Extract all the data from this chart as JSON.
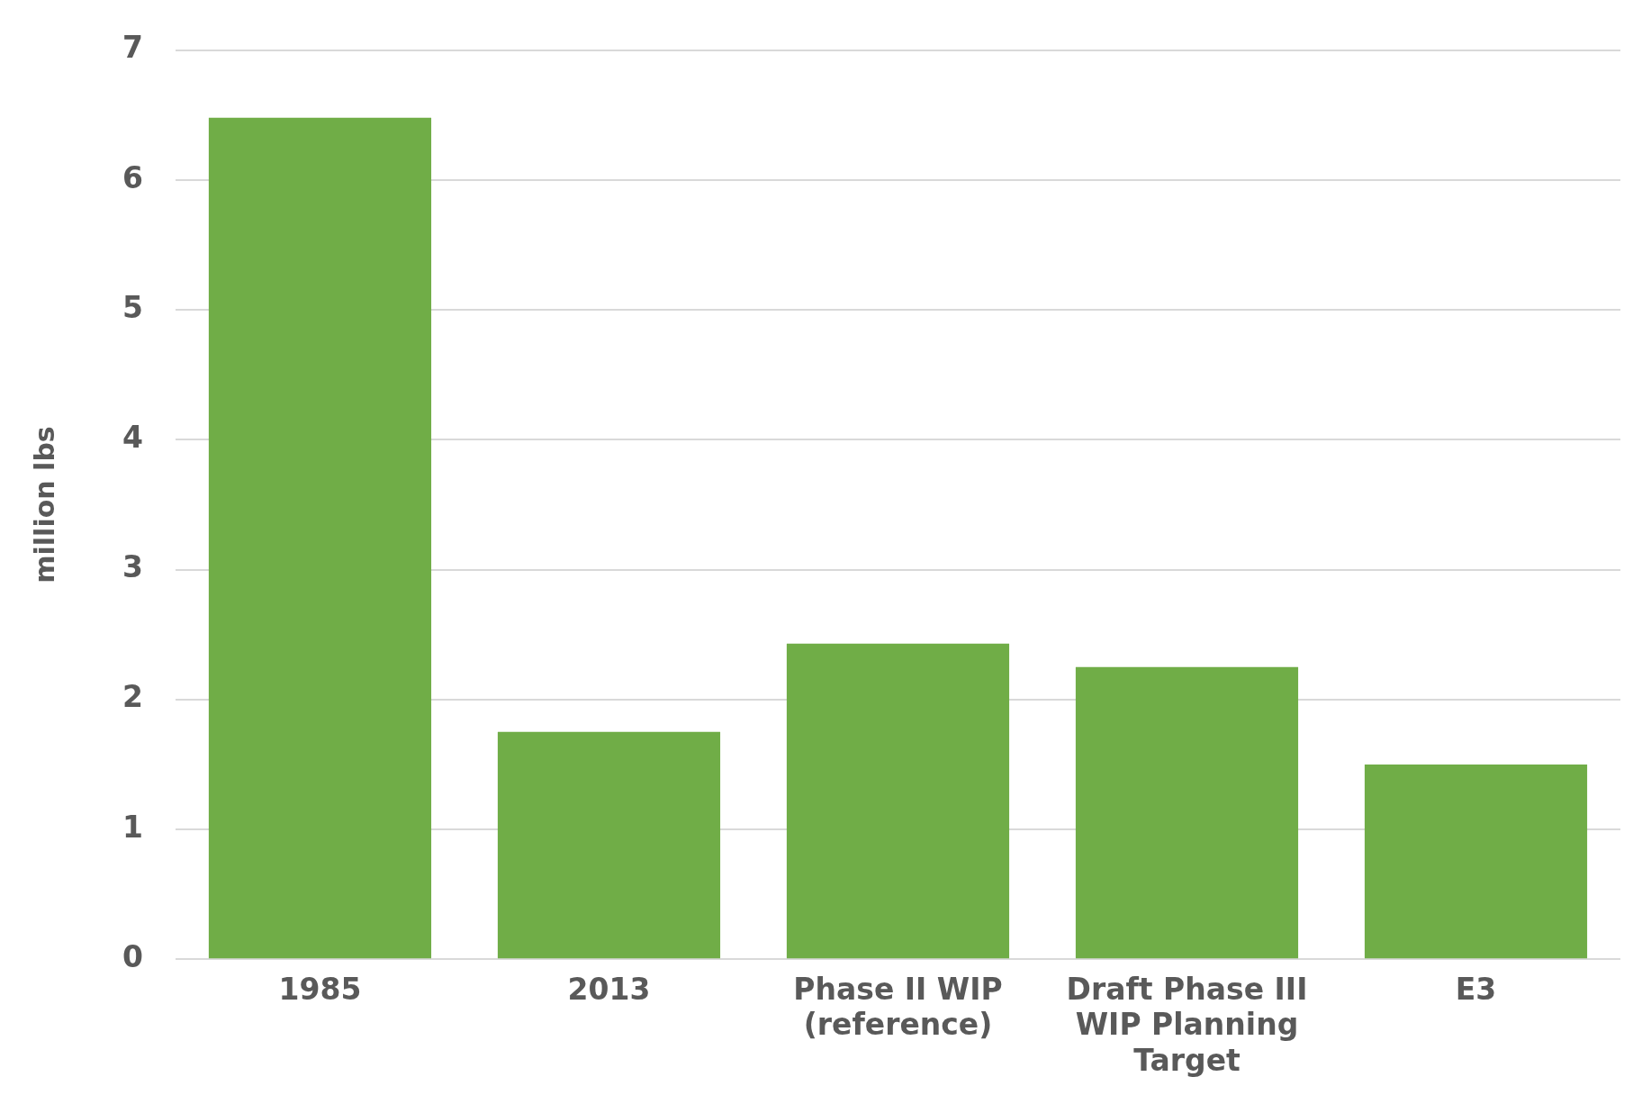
{
  "chart_data": {
    "type": "bar",
    "ylabel": "million lbs",
    "categories": [
      "1985",
      "2013",
      "Phase II WIP (reference)",
      "Draft Phase III WIP Planning Target",
      "E3"
    ],
    "values": [
      6.48,
      1.75,
      2.43,
      2.25,
      1.5
    ],
    "color": "#70ad47",
    "ylim": [
      0,
      7
    ],
    "yticks": [
      0,
      1,
      2,
      3,
      4,
      5,
      6,
      7
    ],
    "grid": "y",
    "legend": false
  }
}
